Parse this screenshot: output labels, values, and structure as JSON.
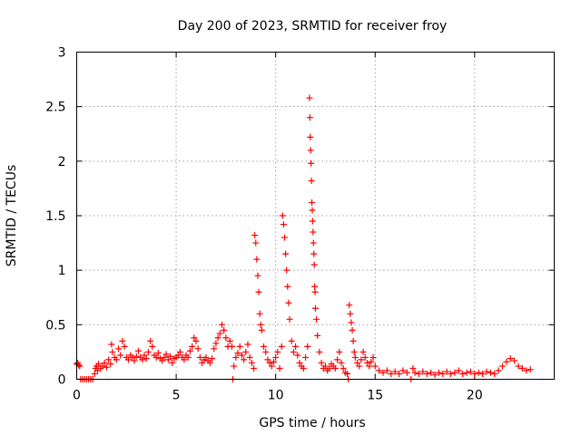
{
  "chart_data": {
    "type": "scatter",
    "title": "Day 200 of 2023, SRMTID for receiver froy",
    "xlabel": "GPS time / hours",
    "ylabel": "SRMTID / TECUs",
    "xlim": [
      0,
      24
    ],
    "ylim": [
      0,
      3
    ],
    "xticks": [
      0,
      5,
      10,
      15,
      20
    ],
    "yticks": [
      0,
      0.5,
      1,
      1.5,
      2,
      2.5,
      3
    ],
    "xtick_labels": [
      "0",
      "5",
      "10",
      "15",
      "20"
    ],
    "ytick_labels": [
      "0",
      "0.5",
      "1",
      "1.5",
      "2",
      "2.5",
      "3"
    ],
    "grid": true,
    "marker": "plus",
    "series": [
      {
        "name": "SRMTID",
        "color": "#ff0000",
        "points": [
          [
            0.0,
            0.14
          ],
          [
            0.05,
            0.15
          ],
          [
            0.1,
            0.13
          ],
          [
            0.15,
            0.12
          ],
          [
            0.2,
            0.0
          ],
          [
            0.3,
            0.0
          ],
          [
            0.4,
            0.0
          ],
          [
            0.5,
            0.0
          ],
          [
            0.6,
            0.0
          ],
          [
            0.7,
            0.0
          ],
          [
            0.8,
            0.0
          ],
          [
            0.9,
            0.05
          ],
          [
            0.95,
            0.1
          ],
          [
            1.0,
            0.12
          ],
          [
            1.05,
            0.08
          ],
          [
            1.1,
            0.14
          ],
          [
            1.2,
            0.1
          ],
          [
            1.3,
            0.12
          ],
          [
            1.4,
            0.15
          ],
          [
            1.5,
            0.11
          ],
          [
            1.6,
            0.18
          ],
          [
            1.7,
            0.14
          ],
          [
            1.75,
            0.32
          ],
          [
            1.8,
            0.25
          ],
          [
            1.9,
            0.2
          ],
          [
            2.0,
            0.18
          ],
          [
            2.1,
            0.28
          ],
          [
            2.2,
            0.22
          ],
          [
            2.3,
            0.35
          ],
          [
            2.4,
            0.3
          ],
          [
            2.5,
            0.2
          ],
          [
            2.6,
            0.18
          ],
          [
            2.7,
            0.22
          ],
          [
            2.8,
            0.2
          ],
          [
            2.9,
            0.17
          ],
          [
            3.0,
            0.21
          ],
          [
            3.1,
            0.26
          ],
          [
            3.2,
            0.2
          ],
          [
            3.3,
            0.18
          ],
          [
            3.4,
            0.22
          ],
          [
            3.5,
            0.19
          ],
          [
            3.6,
            0.25
          ],
          [
            3.7,
            0.35
          ],
          [
            3.8,
            0.3
          ],
          [
            3.9,
            0.22
          ],
          [
            4.0,
            0.2
          ],
          [
            4.1,
            0.24
          ],
          [
            4.2,
            0.19
          ],
          [
            4.3,
            0.17
          ],
          [
            4.4,
            0.2
          ],
          [
            4.5,
            0.23
          ],
          [
            4.6,
            0.18
          ],
          [
            4.7,
            0.21
          ],
          [
            4.8,
            0.15
          ],
          [
            4.9,
            0.19
          ],
          [
            5.0,
            0.2
          ],
          [
            5.1,
            0.22
          ],
          [
            5.2,
            0.25
          ],
          [
            5.3,
            0.2
          ],
          [
            5.4,
            0.18
          ],
          [
            5.5,
            0.22
          ],
          [
            5.6,
            0.2
          ],
          [
            5.7,
            0.26
          ],
          [
            5.8,
            0.3
          ],
          [
            5.9,
            0.38
          ],
          [
            6.0,
            0.35
          ],
          [
            6.1,
            0.28
          ],
          [
            6.2,
            0.2
          ],
          [
            6.3,
            0.15
          ],
          [
            6.4,
            0.18
          ],
          [
            6.5,
            0.2
          ],
          [
            6.6,
            0.17
          ],
          [
            6.7,
            0.15
          ],
          [
            6.8,
            0.19
          ],
          [
            6.9,
            0.28
          ],
          [
            7.0,
            0.33
          ],
          [
            7.1,
            0.38
          ],
          [
            7.2,
            0.42
          ],
          [
            7.3,
            0.5
          ],
          [
            7.4,
            0.45
          ],
          [
            7.5,
            0.38
          ],
          [
            7.6,
            0.3
          ],
          [
            7.7,
            0.35
          ],
          [
            7.8,
            0.3
          ],
          [
            7.85,
            0.0
          ],
          [
            7.9,
            0.12
          ],
          [
            8.0,
            0.2
          ],
          [
            8.1,
            0.24
          ],
          [
            8.2,
            0.3
          ],
          [
            8.3,
            0.22
          ],
          [
            8.4,
            0.18
          ],
          [
            8.5,
            0.25
          ],
          [
            8.6,
            0.32
          ],
          [
            8.7,
            0.2
          ],
          [
            8.8,
            0.15
          ],
          [
            8.9,
            0.1
          ],
          [
            8.95,
            1.32
          ],
          [
            9.0,
            1.25
          ],
          [
            9.05,
            1.1
          ],
          [
            9.1,
            0.95
          ],
          [
            9.15,
            0.8
          ],
          [
            9.2,
            0.6
          ],
          [
            9.25,
            0.5
          ],
          [
            9.3,
            0.45
          ],
          [
            9.4,
            0.3
          ],
          [
            9.5,
            0.25
          ],
          [
            9.6,
            0.18
          ],
          [
            9.7,
            0.15
          ],
          [
            9.8,
            0.12
          ],
          [
            9.9,
            0.16
          ],
          [
            10.0,
            0.2
          ],
          [
            10.1,
            0.25
          ],
          [
            10.2,
            0.1
          ],
          [
            10.3,
            0.3
          ],
          [
            10.35,
            1.5
          ],
          [
            10.4,
            1.42
          ],
          [
            10.45,
            1.3
          ],
          [
            10.5,
            1.15
          ],
          [
            10.55,
            1.0
          ],
          [
            10.6,
            0.85
          ],
          [
            10.65,
            0.7
          ],
          [
            10.7,
            0.55
          ],
          [
            10.8,
            0.35
          ],
          [
            10.9,
            0.25
          ],
          [
            11.0,
            0.3
          ],
          [
            11.1,
            0.22
          ],
          [
            11.2,
            0.15
          ],
          [
            11.3,
            0.12
          ],
          [
            11.4,
            0.1
          ],
          [
            11.5,
            0.2
          ],
          [
            11.6,
            0.3
          ],
          [
            11.7,
            2.58
          ],
          [
            11.72,
            2.4
          ],
          [
            11.74,
            2.22
          ],
          [
            11.76,
            2.1
          ],
          [
            11.78,
            1.98
          ],
          [
            11.8,
            1.82
          ],
          [
            11.82,
            1.62
          ],
          [
            11.84,
            1.55
          ],
          [
            11.86,
            1.45
          ],
          [
            11.88,
            1.35
          ],
          [
            11.9,
            1.25
          ],
          [
            11.92,
            1.15
          ],
          [
            11.94,
            1.05
          ],
          [
            11.96,
            0.85
          ],
          [
            11.98,
            0.8
          ],
          [
            12.0,
            0.65
          ],
          [
            12.05,
            0.55
          ],
          [
            12.1,
            0.4
          ],
          [
            12.2,
            0.25
          ],
          [
            12.3,
            0.15
          ],
          [
            12.4,
            0.1
          ],
          [
            12.5,
            0.12
          ],
          [
            12.6,
            0.08
          ],
          [
            12.7,
            0.1
          ],
          [
            12.8,
            0.14
          ],
          [
            12.9,
            0.12
          ],
          [
            13.0,
            0.1
          ],
          [
            13.1,
            0.18
          ],
          [
            13.2,
            0.25
          ],
          [
            13.3,
            0.15
          ],
          [
            13.4,
            0.1
          ],
          [
            13.5,
            0.06
          ],
          [
            13.6,
            0.05
          ],
          [
            13.65,
            0.0
          ],
          [
            13.7,
            0.68
          ],
          [
            13.75,
            0.6
          ],
          [
            13.8,
            0.52
          ],
          [
            13.85,
            0.45
          ],
          [
            13.9,
            0.35
          ],
          [
            13.95,
            0.25
          ],
          [
            14.0,
            0.2
          ],
          [
            14.1,
            0.15
          ],
          [
            14.2,
            0.12
          ],
          [
            14.3,
            0.18
          ],
          [
            14.4,
            0.25
          ],
          [
            14.5,
            0.2
          ],
          [
            14.6,
            0.15
          ],
          [
            14.7,
            0.12
          ],
          [
            14.8,
            0.16
          ],
          [
            14.9,
            0.2
          ],
          [
            15.0,
            0.12
          ],
          [
            15.2,
            0.08
          ],
          [
            15.4,
            0.06
          ],
          [
            15.6,
            0.08
          ],
          [
            15.8,
            0.05
          ],
          [
            16.0,
            0.07
          ],
          [
            16.2,
            0.05
          ],
          [
            16.4,
            0.08
          ],
          [
            16.6,
            0.06
          ],
          [
            16.8,
            0.0
          ],
          [
            16.9,
            0.1
          ],
          [
            17.0,
            0.06
          ],
          [
            17.2,
            0.05
          ],
          [
            17.4,
            0.07
          ],
          [
            17.6,
            0.05
          ],
          [
            17.8,
            0.06
          ],
          [
            18.0,
            0.04
          ],
          [
            18.2,
            0.06
          ],
          [
            18.4,
            0.05
          ],
          [
            18.6,
            0.07
          ],
          [
            18.8,
            0.05
          ],
          [
            19.0,
            0.06
          ],
          [
            19.2,
            0.08
          ],
          [
            19.4,
            0.05
          ],
          [
            19.6,
            0.06
          ],
          [
            19.8,
            0.07
          ],
          [
            20.0,
            0.05
          ],
          [
            20.2,
            0.06
          ],
          [
            20.4,
            0.05
          ],
          [
            20.6,
            0.07
          ],
          [
            20.8,
            0.06
          ],
          [
            21.0,
            0.05
          ],
          [
            21.2,
            0.08
          ],
          [
            21.4,
            0.12
          ],
          [
            21.6,
            0.16
          ],
          [
            21.8,
            0.19
          ],
          [
            22.0,
            0.17
          ],
          [
            22.2,
            0.12
          ],
          [
            22.4,
            0.1
          ],
          [
            22.6,
            0.08
          ],
          [
            22.8,
            0.09
          ]
        ]
      }
    ]
  }
}
